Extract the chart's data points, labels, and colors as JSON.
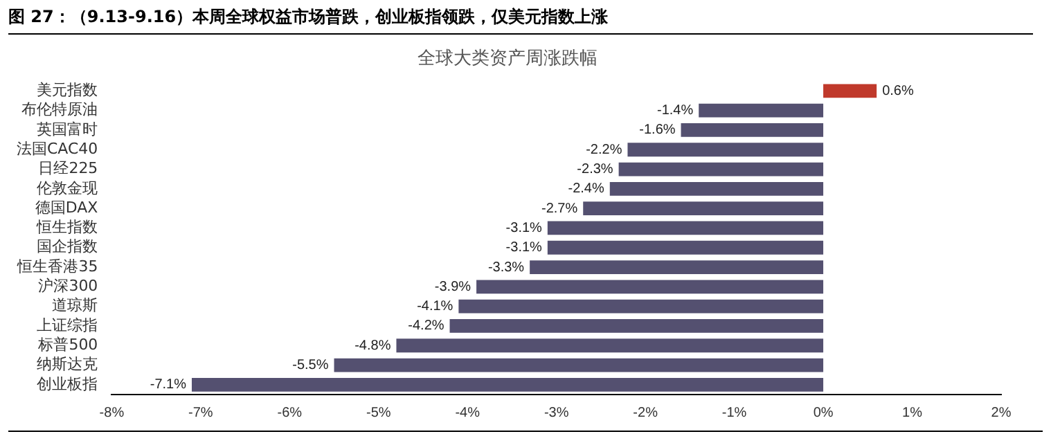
{
  "chart_data": {
    "type": "bar",
    "orientation": "horizontal",
    "title": "图 27：（9.13-9.16）本周全球权益市场普跌，创业板指领跌，仅美元指数上涨",
    "subtitle": "全球大类资产周涨跌幅",
    "categories": [
      "美元指数",
      "布伦特原油",
      "英国富时",
      "法国CAC40",
      "日经225",
      "伦敦金现",
      "德国DAX",
      "恒生指数",
      "国企指数",
      "恒生香港35",
      "沪深300",
      "道琼斯",
      "上证综指",
      "标普500",
      "纳斯达克",
      "创业板指"
    ],
    "values": [
      0.6,
      -1.4,
      -1.6,
      -2.2,
      -2.3,
      -2.4,
      -2.7,
      -3.1,
      -3.1,
      -3.3,
      -3.9,
      -4.1,
      -4.2,
      -4.8,
      -5.5,
      -7.1
    ],
    "value_labels": [
      "0.6%",
      "-1.4%",
      "-1.6%",
      "-2.2%",
      "-2.3%",
      "-2.4%",
      "-2.7%",
      "-3.1%",
      "-3.1%",
      "-3.3%",
      "-3.9%",
      "-4.1%",
      "-4.2%",
      "-4.8%",
      "-5.5%",
      "-7.1%"
    ],
    "colors": [
      "#c0392b",
      "#545070",
      "#545070",
      "#545070",
      "#545070",
      "#545070",
      "#545070",
      "#545070",
      "#545070",
      "#545070",
      "#545070",
      "#545070",
      "#545070",
      "#545070",
      "#545070",
      "#545070"
    ],
    "xlim": [
      -8,
      2
    ],
    "xticks": [
      {
        "value": -8,
        "label": "-8%"
      },
      {
        "value": -7,
        "label": "-7%"
      },
      {
        "value": -6,
        "label": "-6%"
      },
      {
        "value": -5,
        "label": "-5%"
      },
      {
        "value": -4,
        "label": "-4%"
      },
      {
        "value": -3,
        "label": "-3%"
      },
      {
        "value": -2,
        "label": "-2%"
      },
      {
        "value": -1,
        "label": "-1%"
      },
      {
        "value": 0,
        "label": "0%"
      },
      {
        "value": 1,
        "label": "1%"
      },
      {
        "value": 2,
        "label": "2%"
      }
    ],
    "grid": false,
    "legend": false
  }
}
